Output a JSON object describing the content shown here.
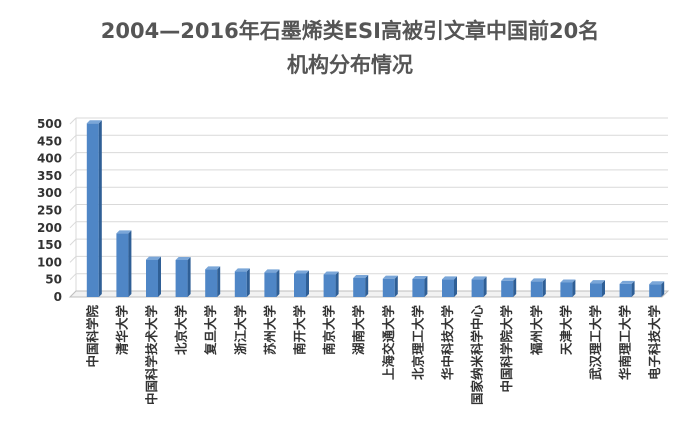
{
  "chart_data": {
    "type": "bar",
    "title_lines": [
      "2004—2016年石墨烯类ESI高被引文章中国前20名",
      "机构分布情况"
    ],
    "xlabel": "",
    "ylabel": "",
    "ylim": [
      0,
      500
    ],
    "yticks": [
      "0",
      "50",
      "100",
      "150",
      "200",
      "250",
      "300",
      "350",
      "400",
      "450",
      "500"
    ],
    "grid": true,
    "bar_color": "#4f86c6",
    "categories": [
      "中国科学院",
      "清华大学",
      "中国科学技术大学",
      "北京大学",
      "复旦大学",
      "浙江大学",
      "苏州大学",
      "南开大学",
      "南京大学",
      "湖南大学",
      "上海交通大学",
      "北京理工大学",
      "华中科技大学",
      "国家纳米科学中心",
      "中国科学院大学",
      "福州大学",
      "天津大学",
      "武汉理工大学",
      "华南理工大学",
      "电子科技大学"
    ],
    "values": [
      502,
      184,
      108,
      107,
      80,
      74,
      71,
      68,
      65,
      55,
      53,
      52,
      51,
      51,
      47,
      45,
      42,
      40,
      38,
      37
    ]
  }
}
